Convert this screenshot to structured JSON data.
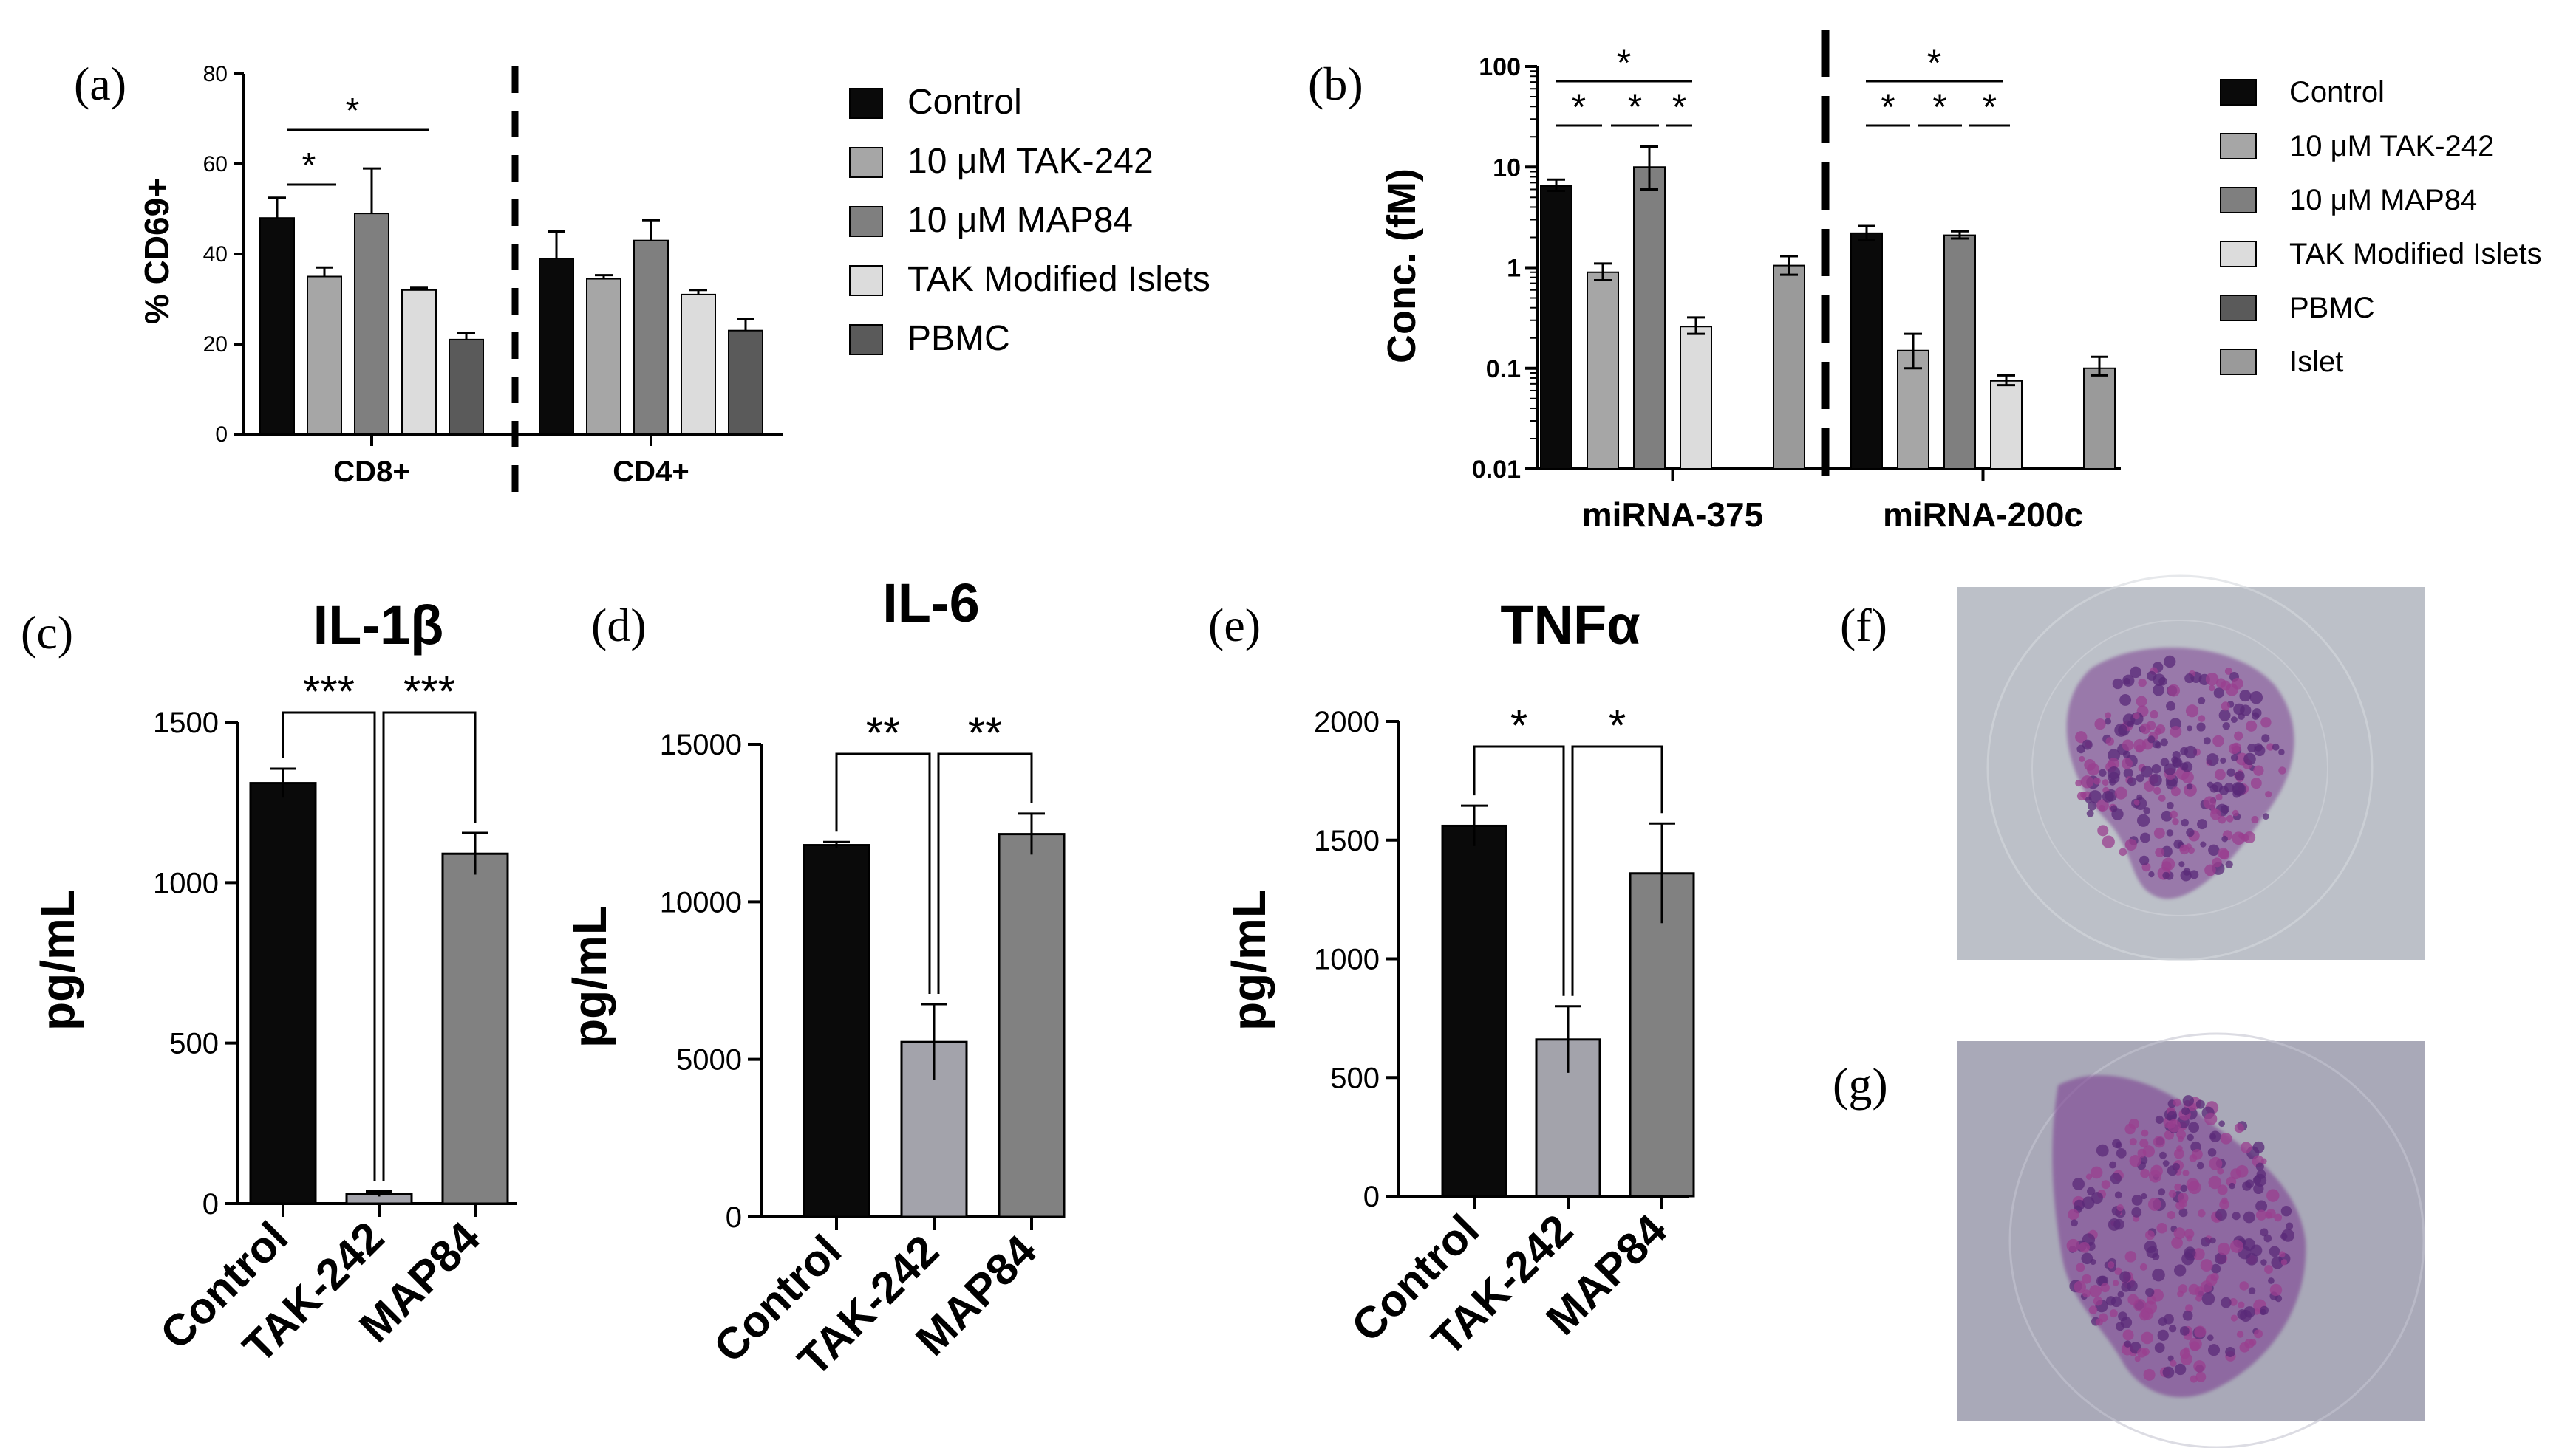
{
  "colors": {
    "control": "#0a0a0a",
    "tak242": "#a6a6a6",
    "map84": "#7f7f7f",
    "tak_modified": "#dcdcdc",
    "pbmc": "#5a5a5a",
    "islet": "#9a9a9a",
    "cytokine_tak": "#a3a3ab",
    "cytokine_map": "#818181",
    "micro_bg_f": "#bcc0c8",
    "micro_bg_g": "#a9a9b8",
    "stain": "#7d3f92"
  },
  "panels": {
    "a": {
      "letter": "(a)"
    },
    "b": {
      "letter": "(b)"
    },
    "c": {
      "letter": "(c)"
    },
    "d": {
      "letter": "(d)"
    },
    "e": {
      "letter": "(e)"
    },
    "f": {
      "letter": "(f)"
    },
    "g": {
      "letter": "(g)"
    }
  },
  "chart_data": [
    {
      "panel": "a",
      "type": "bar",
      "title": "",
      "ylabel": "% CD69+",
      "ylim": [
        0,
        80
      ],
      "yticks": [
        0,
        20,
        40,
        60,
        80
      ],
      "groups": [
        "CD8+",
        "CD4+"
      ],
      "series": [
        {
          "name": "Control",
          "values": [
            48,
            39
          ],
          "errors": [
            4.5,
            6
          ]
        },
        {
          "name": "10 μM TAK-242",
          "values": [
            35,
            34.5
          ],
          "errors": [
            2,
            0.8
          ]
        },
        {
          "name": "10 μM MAP84",
          "values": [
            49,
            43
          ],
          "errors": [
            10,
            4.5
          ]
        },
        {
          "name": "TAK Modified Islets",
          "values": [
            32,
            31
          ],
          "errors": [
            0.5,
            1
          ]
        },
        {
          "name": "PBMC",
          "values": [
            21,
            23
          ],
          "errors": [
            1.5,
            2.5
          ]
        }
      ],
      "significance": [
        "*",
        "*"
      ],
      "legend": [
        "Control",
        "10 μM TAK-242",
        "10 μM MAP84",
        "TAK Modified Islets",
        "PBMC"
      ]
    },
    {
      "panel": "b",
      "type": "bar",
      "scale": "log",
      "ylabel": "Conc. (fM)",
      "ylim": [
        0.01,
        100
      ],
      "yticks": [
        "0.01",
        "0.1",
        "1",
        "10",
        "100"
      ],
      "groups": [
        "miRNA-375",
        "miRNA-200c"
      ],
      "series": [
        {
          "name": "Control",
          "values": [
            6.5,
            2.2
          ],
          "errors_hi": [
            7.5,
            2.6
          ],
          "errors_lo": [
            5.8,
            1.9
          ]
        },
        {
          "name": "10 μM TAK-242",
          "values": [
            0.9,
            0.15
          ],
          "errors_hi": [
            1.1,
            0.22
          ],
          "errors_lo": [
            0.75,
            0.1
          ]
        },
        {
          "name": "10 μM MAP84",
          "values": [
            10,
            2.1
          ],
          "errors_hi": [
            16,
            2.3
          ],
          "errors_lo": [
            6,
            1.95
          ]
        },
        {
          "name": "TAK Modified Islets",
          "values": [
            0.26,
            0.075
          ],
          "errors_hi": [
            0.32,
            0.085
          ],
          "errors_lo": [
            0.22,
            0.068
          ]
        },
        {
          "name": "PBMC",
          "values": [
            null,
            null
          ],
          "errors_hi": [
            null,
            null
          ],
          "errors_lo": [
            null,
            null
          ]
        },
        {
          "name": "Islet",
          "values": [
            1.05,
            0.1
          ],
          "errors_hi": [
            1.3,
            0.13
          ],
          "errors_lo": [
            0.85,
            0.085
          ]
        }
      ],
      "significance": [
        "*",
        "*",
        "*",
        "*",
        "*",
        "*",
        "*",
        "*"
      ],
      "legend": [
        "Control",
        "10 μM TAK-242",
        "10 μM MAP84",
        "TAK Modified Islets",
        "PBMC",
        "Islet"
      ]
    },
    {
      "panel": "c",
      "type": "bar",
      "title": "IL-1β",
      "ylabel": "pg/mL",
      "ylim": [
        0,
        1500
      ],
      "yticks": [
        0,
        500,
        1000,
        1500
      ],
      "categories": [
        "Control",
        "TAK-242",
        "MAP84"
      ],
      "values": [
        1310,
        30,
        1090
      ],
      "errors": [
        45,
        8,
        65
      ],
      "significance": [
        "***",
        "***"
      ]
    },
    {
      "panel": "d",
      "type": "bar",
      "title": "IL-6",
      "ylabel": "pg/mL",
      "ylim": [
        0,
        15000
      ],
      "yticks": [
        0,
        5000,
        10000,
        15000
      ],
      "categories": [
        "Control",
        "TAK-242",
        "MAP84"
      ],
      "values": [
        11800,
        5550,
        12150
      ],
      "errors": [
        100,
        1200,
        650
      ],
      "significance": [
        "**",
        "**"
      ]
    },
    {
      "panel": "e",
      "type": "bar",
      "title": "TNFα",
      "ylabel": "pg/mL",
      "ylim": [
        0,
        2000
      ],
      "yticks": [
        0,
        500,
        1000,
        1500,
        2000
      ],
      "categories": [
        "Control",
        "TAK-242",
        "MAP84"
      ],
      "values": [
        1560,
        660,
        1360
      ],
      "errors": [
        85,
        140,
        210
      ],
      "significance": [
        "*",
        "*"
      ]
    }
  ]
}
